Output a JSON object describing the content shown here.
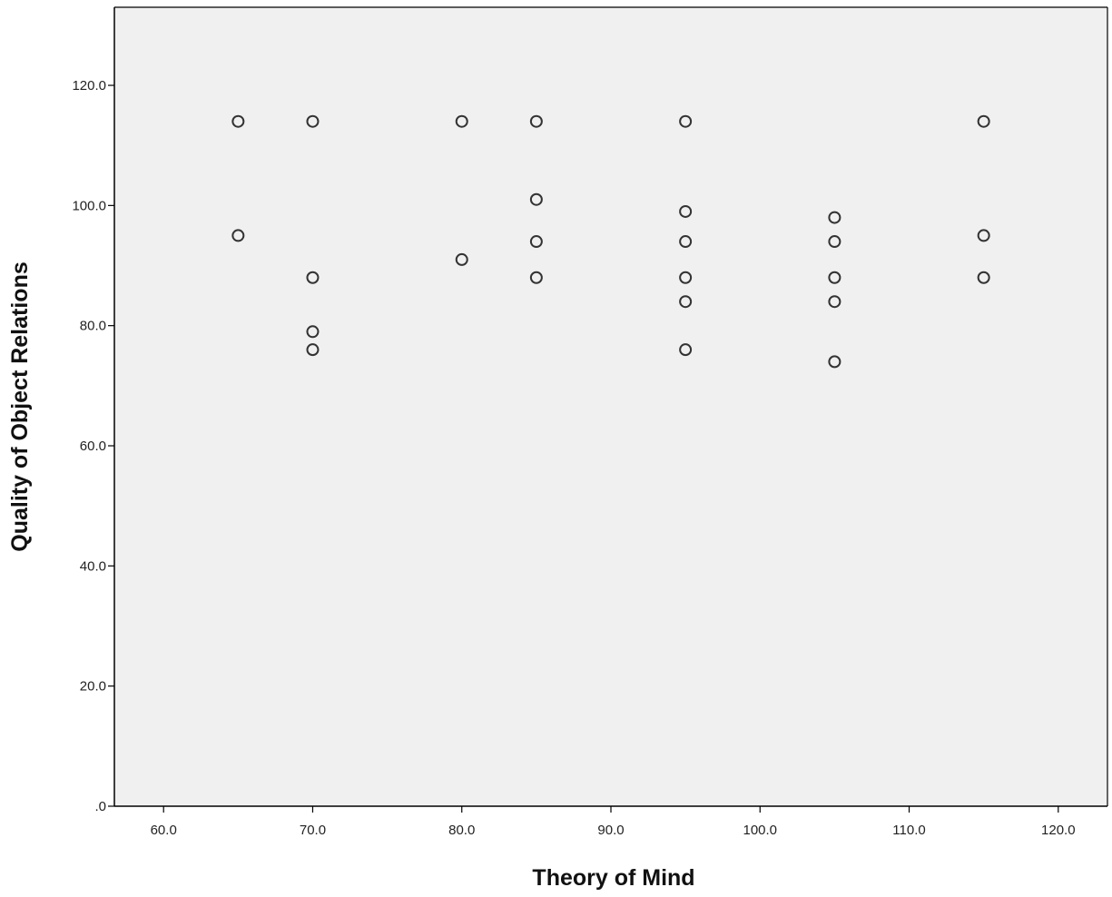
{
  "chart_data": {
    "type": "scatter",
    "title": "",
    "xlabel": "Theory of Mind",
    "ylabel": "Quality of Object Relations",
    "xlim": [
      56.7,
      123.3
    ],
    "ylim": [
      0,
      133
    ],
    "xticks": [
      60,
      70,
      80,
      90,
      100,
      110,
      120
    ],
    "xtick_labels": [
      "60.0",
      "70.0",
      "80.0",
      "90.0",
      "100.0",
      "110.0",
      "120.0"
    ],
    "yticks": [
      0,
      20,
      40,
      60,
      80,
      100,
      120
    ],
    "ytick_labels": [
      ".0",
      "20.0",
      "40.0",
      "60.0",
      "80.0",
      "100.0",
      "120.0"
    ],
    "grid": false,
    "marker": "hollow-circle",
    "colors": {
      "plot_background": "#f0f0f0",
      "marker_stroke": "#333333",
      "axis": "#000000"
    },
    "points": [
      {
        "x": 65,
        "y": 114
      },
      {
        "x": 65,
        "y": 95
      },
      {
        "x": 70,
        "y": 114
      },
      {
        "x": 70,
        "y": 88
      },
      {
        "x": 70,
        "y": 79
      },
      {
        "x": 70,
        "y": 76
      },
      {
        "x": 80,
        "y": 114
      },
      {
        "x": 80,
        "y": 91
      },
      {
        "x": 85,
        "y": 114
      },
      {
        "x": 85,
        "y": 101
      },
      {
        "x": 85,
        "y": 94
      },
      {
        "x": 85,
        "y": 88
      },
      {
        "x": 95,
        "y": 114
      },
      {
        "x": 95,
        "y": 99
      },
      {
        "x": 95,
        "y": 94
      },
      {
        "x": 95,
        "y": 88
      },
      {
        "x": 95,
        "y": 84
      },
      {
        "x": 95,
        "y": 76
      },
      {
        "x": 105,
        "y": 98
      },
      {
        "x": 105,
        "y": 94
      },
      {
        "x": 105,
        "y": 88
      },
      {
        "x": 105,
        "y": 84
      },
      {
        "x": 105,
        "y": 74
      },
      {
        "x": 115,
        "y": 114
      },
      {
        "x": 115,
        "y": 95
      },
      {
        "x": 115,
        "y": 88
      }
    ]
  }
}
